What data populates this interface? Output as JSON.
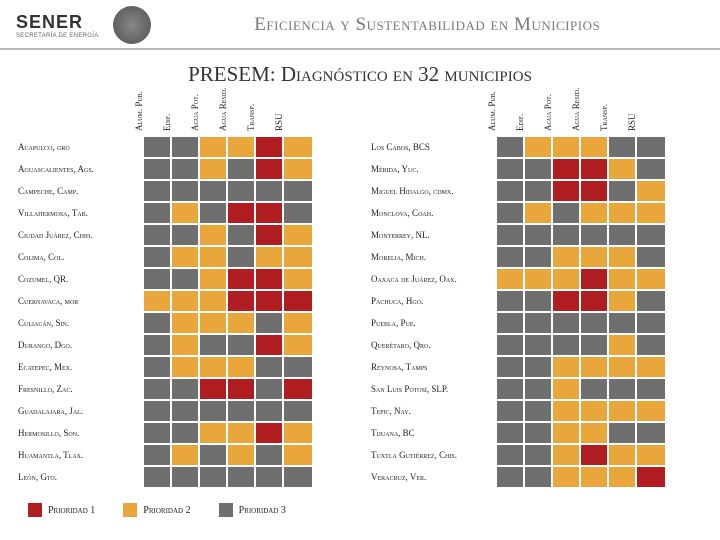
{
  "colors": {
    "priority1": "#b01e22",
    "priority2": "#e9a63a",
    "priority3": "#6f6f6f",
    "header_text": "#7a7a7a",
    "title_text": "#333333"
  },
  "header": {
    "org": "SENER",
    "org_sub": "SECRETARÍA DE ENERGÍA",
    "title": "Eficiencia y Sustentabilidad en Municipios"
  },
  "subtitle": "PRESEM: Diagnóstico en 32 municipios",
  "columns": [
    "Alum. Pub.",
    "Edif.",
    "Agua Pot.",
    "Agua Resid.",
    "Transp.",
    "RSU"
  ],
  "legend": [
    {
      "label": "Prioridad 1",
      "color_key": "priority1"
    },
    {
      "label": "Prioridad 2",
      "color_key": "priority2"
    },
    {
      "label": "Prioridad 3",
      "color_key": "priority3"
    }
  ],
  "left_rows": [
    {
      "label": "Acapulco, gro",
      "cells": [
        3,
        3,
        2,
        2,
        1,
        2
      ]
    },
    {
      "label": "Aguascalientes, Ags.",
      "cells": [
        3,
        3,
        2,
        3,
        1,
        2
      ]
    },
    {
      "label": "Campeche, Camp.",
      "cells": [
        3,
        3,
        3,
        3,
        3,
        3
      ]
    },
    {
      "label": "Villahermosa, Tab.",
      "cells": [
        3,
        2,
        3,
        1,
        1,
        3
      ]
    },
    {
      "label": "Ciudad Juárez, Chih.",
      "cells": [
        3,
        3,
        2,
        3,
        1,
        2
      ]
    },
    {
      "label": "Colima, Col.",
      "cells": [
        3,
        2,
        2,
        3,
        2,
        2
      ]
    },
    {
      "label": "Cozumel, QR.",
      "cells": [
        3,
        3,
        2,
        1,
        1,
        2
      ]
    },
    {
      "label": "Cuernavaca, mor",
      "cells": [
        2,
        2,
        2,
        1,
        1,
        1
      ]
    },
    {
      "label": "Culiacán, Sin.",
      "cells": [
        3,
        2,
        2,
        2,
        3,
        2
      ]
    },
    {
      "label": "Durango, Dgo.",
      "cells": [
        3,
        2,
        3,
        3,
        1,
        2
      ]
    },
    {
      "label": "Ecatepec, Mex.",
      "cells": [
        3,
        2,
        2,
        2,
        3,
        3
      ]
    },
    {
      "label": "Fresnillo, Zac.",
      "cells": [
        3,
        3,
        1,
        1,
        3,
        1
      ]
    },
    {
      "label": "Guadalajara, Jal.",
      "cells": [
        3,
        3,
        3,
        3,
        3,
        3
      ]
    },
    {
      "label": "Hermosillo, Son.",
      "cells": [
        3,
        3,
        2,
        2,
        1,
        2
      ]
    },
    {
      "label": "Huamantla, Tlax.",
      "cells": [
        3,
        2,
        3,
        2,
        3,
        2
      ]
    },
    {
      "label": "León, Gto.",
      "cells": [
        3,
        3,
        3,
        3,
        3,
        3
      ]
    }
  ],
  "right_rows": [
    {
      "label": "Los Cabos, BCS",
      "cells": [
        3,
        2,
        2,
        2,
        3,
        3
      ]
    },
    {
      "label": "Mérida, Yuc.",
      "cells": [
        3,
        3,
        1,
        1,
        2,
        3
      ]
    },
    {
      "label": "Miguel Hidalgo, cdmx.",
      "cells": [
        3,
        3,
        1,
        1,
        3,
        2
      ]
    },
    {
      "label": "Monclova, Coah.",
      "cells": [
        3,
        2,
        3,
        2,
        2,
        2
      ]
    },
    {
      "label": "Monterrey, NL.",
      "cells": [
        3,
        3,
        3,
        3,
        3,
        3
      ]
    },
    {
      "label": "Morelia, Mich.",
      "cells": [
        3,
        3,
        2,
        2,
        2,
        3
      ]
    },
    {
      "label": "Oaxaca de Juárez, Oax.",
      "cells": [
        2,
        2,
        2,
        1,
        2,
        2
      ]
    },
    {
      "label": "Pachuca, Hgo.",
      "cells": [
        3,
        3,
        1,
        1,
        2,
        3
      ]
    },
    {
      "label": "Puebla, Pue.",
      "cells": [
        3,
        3,
        3,
        3,
        3,
        3
      ]
    },
    {
      "label": "Querétaro, Qro.",
      "cells": [
        3,
        3,
        3,
        3,
        2,
        3
      ]
    },
    {
      "label": "Reynosa, Tamps",
      "cells": [
        3,
        3,
        2,
        2,
        2,
        2
      ]
    },
    {
      "label": "San Luis Potosí, SLP.",
      "cells": [
        3,
        3,
        2,
        3,
        3,
        3
      ]
    },
    {
      "label": "Tepic, Nay.",
      "cells": [
        3,
        3,
        2,
        2,
        2,
        2
      ]
    },
    {
      "label": "Tijuana, BC",
      "cells": [
        3,
        3,
        2,
        2,
        3,
        3
      ]
    },
    {
      "label": "Tuxtla Gutiérrez, Chis.",
      "cells": [
        3,
        3,
        2,
        1,
        2,
        2
      ]
    },
    {
      "label": "Veracruz, Ver.",
      "cells": [
        3,
        3,
        2,
        2,
        2,
        1
      ]
    }
  ]
}
